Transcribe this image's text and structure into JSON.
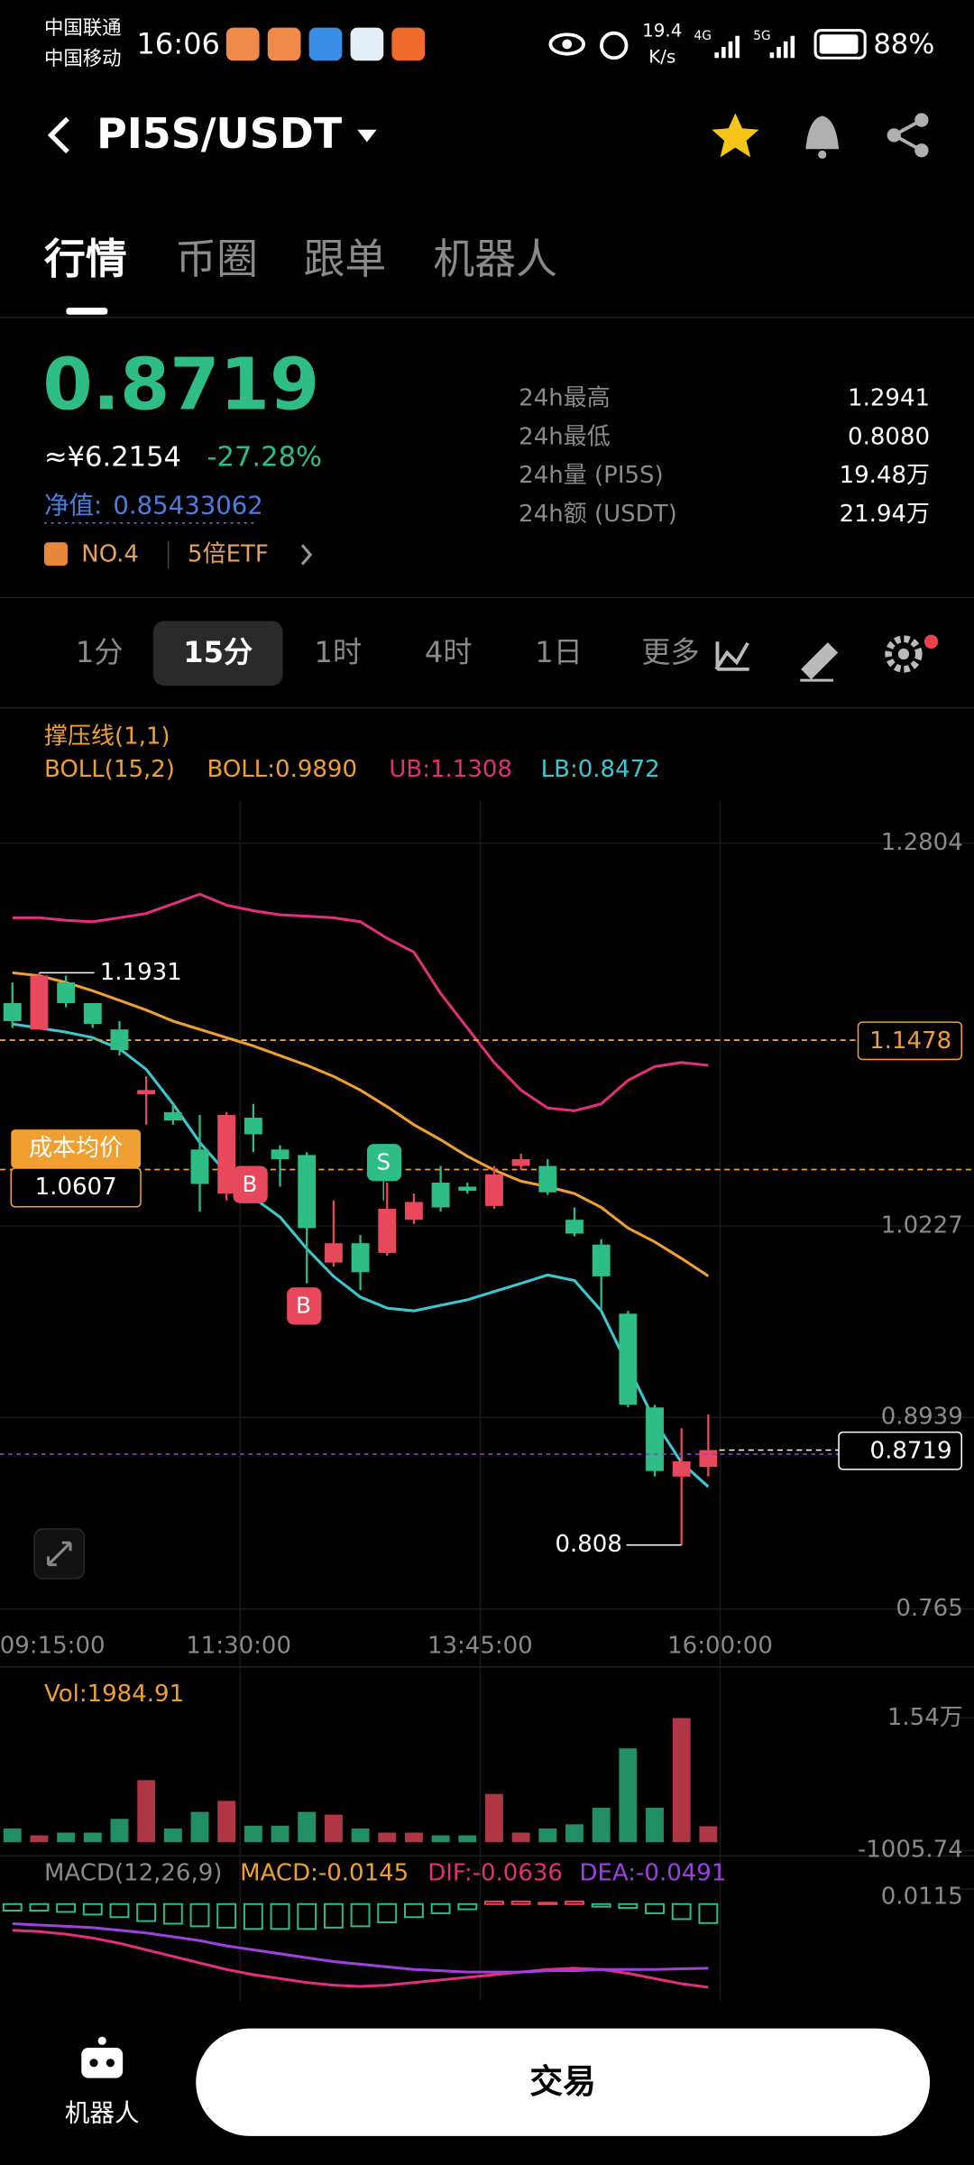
{
  "status_bar": {
    "carrier_1": "中国联通",
    "carrier_2": "中国移动",
    "time": "16:06",
    "speed": "19.4",
    "speed_unit": "K/s",
    "network_1": "4G",
    "network_2": "5G",
    "battery": "88%"
  },
  "header": {
    "pair": "PI5S/USDT"
  },
  "tabs": [
    "行情",
    "币圈",
    "跟单",
    "机器人"
  ],
  "ticker": {
    "price": "0.8719",
    "cny": "≈¥6.2154",
    "change": "-27.28%",
    "nav_label": "净值:",
    "nav": "0.85433062",
    "rank": "NO.4",
    "etf": "5倍ETF",
    "stats": [
      {
        "label": "24h最高",
        "value": "1.2941"
      },
      {
        "label": "24h最低",
        "value": "0.8080"
      },
      {
        "label": "24h量 (PI5S)",
        "value": "19.48万"
      },
      {
        "label": "24h额 (USDT)",
        "value": "21.94万"
      }
    ]
  },
  "intervals": [
    "1分",
    "15分",
    "1时",
    "4时",
    "1日",
    "更多"
  ],
  "chart_data": {
    "type": "candlestick",
    "indicator": "撑压线(1,1)",
    "boll_title": "BOLL(15,2)",
    "up_color": "#e8485c",
    "down_color": "#2ebd85",
    "ylim": [
      0.765,
      1.2804
    ],
    "yticks": [
      1.2804,
      1.0227,
      0.8939,
      0.765
    ],
    "time_labels": [
      "09:15:00",
      "11:30:00",
      "13:45:00",
      "16:00:00"
    ],
    "candles": [
      {
        "o": 1.1727,
        "h": 1.1866,
        "l": 1.156,
        "c": 1.1606
      },
      {
        "o": 1.155,
        "h": 1.1931,
        "l": 1.155,
        "c": 1.1912
      },
      {
        "o": 1.1866,
        "h": 1.1912,
        "l": 1.1699,
        "c": 1.1727
      },
      {
        "o": 1.1727,
        "h": 1.1727,
        "l": 1.156,
        "c": 1.1587
      },
      {
        "o": 1.155,
        "h": 1.1606,
        "l": 1.1374,
        "c": 1.1411
      },
      {
        "o": 1.1114,
        "h": 1.1234,
        "l": 1.0909,
        "c": 1.1142
      },
      {
        "o": 1.0993,
        "h": 1.1049,
        "l": 1.0909,
        "c": 1.0937
      },
      {
        "o": 1.0742,
        "h": 1.0974,
        "l": 1.0324,
        "c": 1.051
      },
      {
        "o": 1.0445,
        "h": 1.0993,
        "l": 1.0399,
        "c": 1.0974
      },
      {
        "o": 1.0956,
        "h": 1.1049,
        "l": 1.0724,
        "c": 1.0844
      },
      {
        "o": 1.0742,
        "h": 1.077,
        "l": 1.0492,
        "c": 1.0677
      },
      {
        "o": 1.0705,
        "h": 1.0724,
        "l": 0.9841,
        "c": 1.0213
      },
      {
        "o": 0.9981,
        "h": 1.0399,
        "l": 0.9953,
        "c": 1.0111
      },
      {
        "o": 1.0111,
        "h": 1.0166,
        "l": 0.9795,
        "c": 0.9916
      },
      {
        "o": 1.0046,
        "h": 1.0519,
        "l": 1.0027,
        "c": 1.0343
      },
      {
        "o": 1.0269,
        "h": 1.0445,
        "l": 1.0241,
        "c": 1.0389
      },
      {
        "o": 1.0519,
        "h": 1.0631,
        "l": 1.0324,
        "c": 1.0352
      },
      {
        "o": 1.0492,
        "h": 1.0519,
        "l": 1.0445,
        "c": 1.0464
      },
      {
        "o": 1.0362,
        "h": 1.0631,
        "l": 1.0343,
        "c": 1.0575
      },
      {
        "o": 1.0631,
        "h": 1.0714,
        "l": 1.0603,
        "c": 1.0677
      },
      {
        "o": 1.0631,
        "h": 1.0677,
        "l": 1.0436,
        "c": 1.0454
      },
      {
        "o": 1.0269,
        "h": 1.0352,
        "l": 1.0157,
        "c": 1.0176
      },
      {
        "o": 1.0102,
        "h": 1.0139,
        "l": 0.9656,
        "c": 0.9888
      },
      {
        "o": 0.9637,
        "h": 0.9656,
        "l": 0.9006,
        "c": 0.9024
      },
      {
        "o": 0.9006,
        "h": 0.9024,
        "l": 0.8541,
        "c": 0.8578
      },
      {
        "o": 0.8541,
        "h": 0.8866,
        "l": 0.808,
        "c": 0.8643
      },
      {
        "o": 0.8606,
        "h": 0.8959,
        "l": 0.8541,
        "c": 0.8719
      }
    ],
    "boll": [
      {
        "label": "BOLL:0.9890",
        "color": "#f0a030",
        "values": [
          1.1931,
          1.1912,
          1.1866,
          1.181,
          1.1745,
          1.168,
          1.1606,
          1.155,
          1.1495,
          1.1439,
          1.1374,
          1.1309,
          1.1234,
          1.1142,
          1.103,
          1.0909,
          1.0807,
          1.0696,
          1.0603,
          1.0529,
          1.0492,
          1.0445,
          1.0352,
          1.0213,
          1.012,
          1.0009,
          0.989
        ]
      },
      {
        "label": "UB:1.1308",
        "color": "#e0307a",
        "values": [
          1.2302,
          1.2302,
          1.2284,
          1.2275,
          1.2302,
          1.233,
          1.2395,
          1.246,
          1.2386,
          1.2349,
          1.2321,
          1.2312,
          1.2302,
          1.2275,
          1.2163,
          1.207,
          1.1792,
          1.156,
          1.1327,
          1.1142,
          1.1021,
          1.1002,
          1.1049,
          1.1207,
          1.13,
          1.1327,
          1.1308
        ]
      },
      {
        "label": "LB:0.8472",
        "color": "#3cc8d0",
        "values": [
          1.1587,
          1.156,
          1.1532,
          1.1495,
          1.142,
          1.1281,
          1.1049,
          1.0789,
          1.0584,
          1.0417,
          1.0287,
          1.0074,
          0.9888,
          0.9749,
          0.9674,
          0.9656,
          0.9693,
          0.973,
          0.9786,
          0.9841,
          0.9897,
          0.986,
          0.9656,
          0.9284,
          0.8913,
          0.8634,
          0.8472
        ]
      }
    ],
    "levels": [
      {
        "value": 1.1478,
        "color": "#f0a030"
      },
      {
        "value": 1.0607,
        "label": "成本均价",
        "color": "#f0a030"
      }
    ],
    "signals": [
      "B",
      "B",
      "S"
    ],
    "volume": {
      "label": "Vol:1984.91",
      "ylim": [
        -1005.74,
        15400
      ],
      "yticks": [
        {
          "value": 15400,
          "label": "1.54万"
        },
        -1005.74
      ],
      "values": [
        1710,
        855,
        1197,
        1197,
        2907,
        7695,
        1710,
        3762,
        5130,
        2052,
        2052,
        3762,
        3420,
        1710,
        1197,
        1197,
        855,
        855,
        5985,
        1197,
        1710,
        2223,
        4275,
        11628,
        4275,
        15390,
        1984.91
      ]
    },
    "macd": {
      "title": "MACD(12,26,9)",
      "ylim": [
        -0.075,
        0.0115
      ],
      "yticks": [
        0.0115
      ],
      "hist": {
        "label": "MACD:-0.0145",
        "color": "#f0a030",
        "values": [
          -0.005,
          -0.005,
          -0.006,
          -0.008,
          -0.01,
          -0.013,
          -0.015,
          -0.017,
          -0.018,
          -0.019,
          -0.019,
          -0.019,
          -0.018,
          -0.017,
          -0.014,
          -0.01,
          -0.007,
          -0.004,
          0.002,
          0.002,
          0.001,
          0.002,
          -0.002,
          -0.003,
          -0.007,
          -0.0115,
          -0.0145
        ]
      },
      "dif": {
        "label": "DIF:-0.0636",
        "color": "#e0307a",
        "values": [
          -0.02,
          -0.021,
          -0.023,
          -0.026,
          -0.03,
          -0.035,
          -0.04,
          -0.045,
          -0.05,
          -0.054,
          -0.057,
          -0.06,
          -0.062,
          -0.063,
          -0.062,
          -0.06,
          -0.058,
          -0.056,
          -0.054,
          -0.052,
          -0.05,
          -0.049,
          -0.05,
          -0.053,
          -0.057,
          -0.061,
          -0.0636
        ]
      },
      "dea": {
        "label": "DEA:-0.0491",
        "color": "#a040e0",
        "values": [
          -0.015,
          -0.016,
          -0.017,
          -0.018,
          -0.02,
          -0.022,
          -0.025,
          -0.028,
          -0.032,
          -0.035,
          -0.038,
          -0.041,
          -0.044,
          -0.046,
          -0.048,
          -0.05,
          -0.051,
          -0.052,
          -0.052,
          -0.052,
          -0.051,
          -0.051,
          -0.05,
          -0.05,
          -0.05,
          -0.0495,
          -0.0491
        ]
      }
    }
  },
  "bottom_bar": {
    "robot": "机器人",
    "trade": "交易"
  }
}
